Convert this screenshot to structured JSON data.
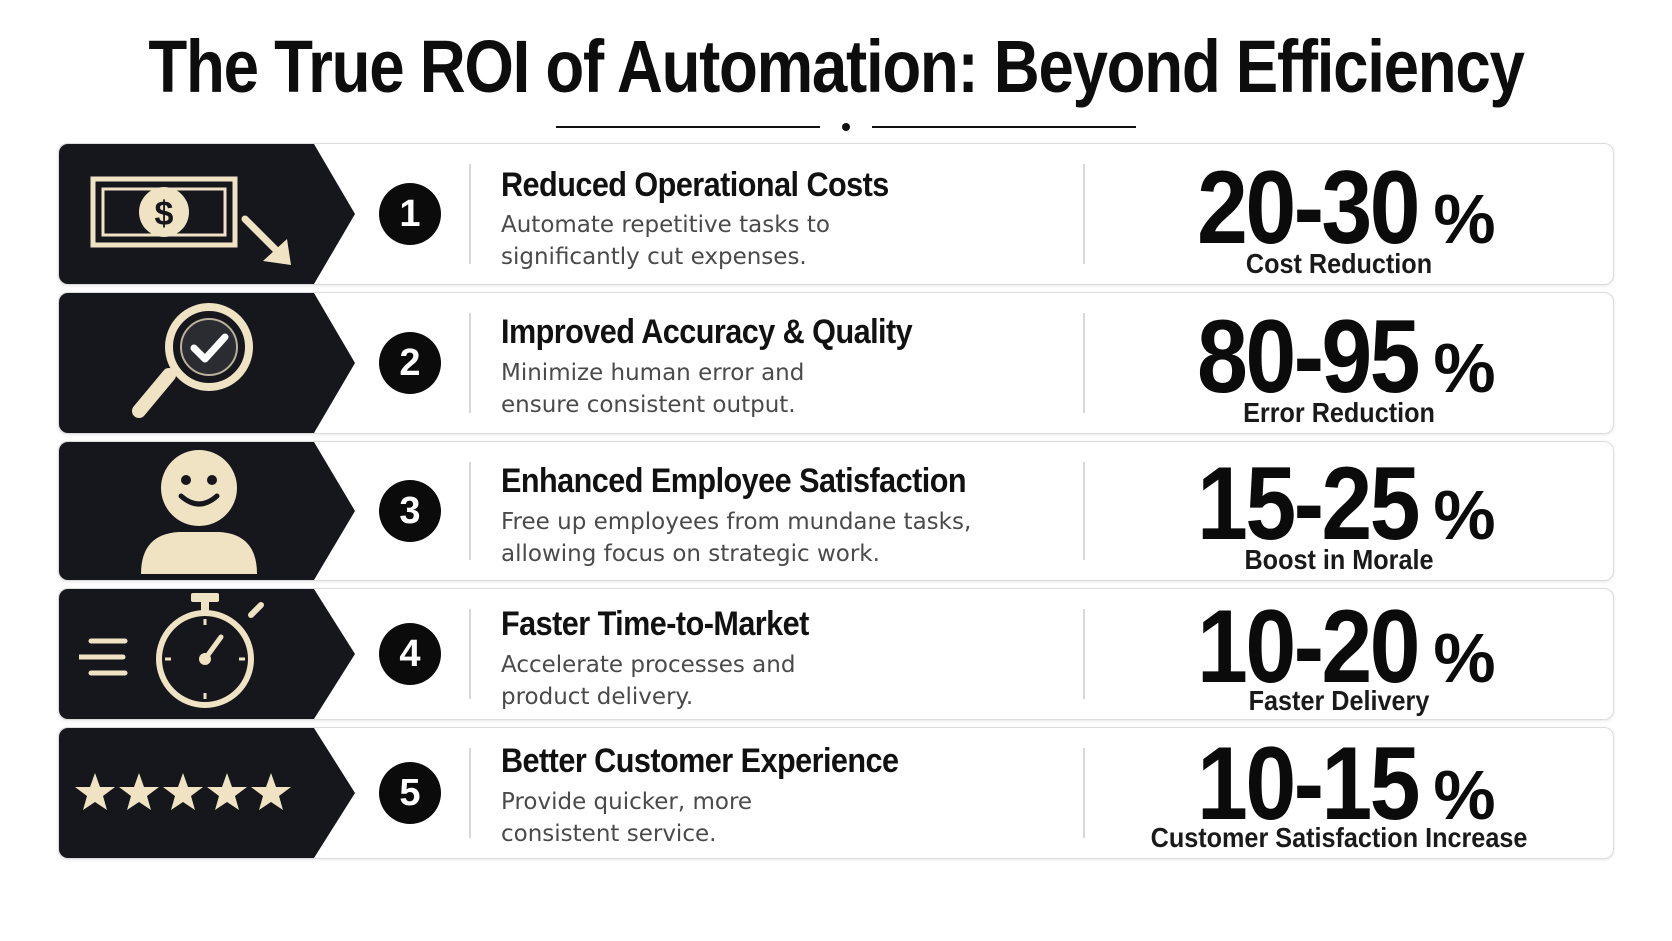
{
  "title": "The True ROI of Automation: Beyond Efficiency",
  "colors": {
    "icon_panel": "#15171c",
    "icon_fill": "#efe3c4",
    "number_badge": "#0b0b0b"
  },
  "rows": [
    {
      "number": "1",
      "icon": "money-down-icon",
      "heading": "Reduced Operational Costs",
      "desc_line1": "Automate repetitive tasks to",
      "desc_line2": "significantly cut expenses.",
      "stat_range": "20-30",
      "stat_unit": "%",
      "stat_label": "Cost Reduction"
    },
    {
      "number": "2",
      "icon": "magnifier-check-icon",
      "heading": "Improved Accuracy & Quality",
      "desc_line1": "Minimize human error and",
      "desc_line2": "ensure consistent output.",
      "stat_range": "80-95",
      "stat_unit": "%",
      "stat_label": "Error Reduction"
    },
    {
      "number": "3",
      "icon": "smiling-person-icon",
      "heading": "Enhanced Employee Satisfaction",
      "desc_line1": "Free up employees from mundane tasks,",
      "desc_line2": "allowing focus on strategic work.",
      "stat_range": "15-25",
      "stat_unit": "%",
      "stat_label": "Boost in Morale"
    },
    {
      "number": "4",
      "icon": "stopwatch-icon",
      "heading": "Faster Time-to-Market",
      "desc_line1": "Accelerate processes and",
      "desc_line2": "product delivery.",
      "stat_range": "10-20",
      "stat_unit": "%",
      "stat_label": "Faster Delivery"
    },
    {
      "number": "5",
      "icon": "five-stars-icon",
      "heading": "Better Customer Experience",
      "desc_line1": "Provide quicker, more",
      "desc_line2": "consistent service.",
      "stat_range": "10-15",
      "stat_unit": "%",
      "stat_label": "Customer Satisfaction Increase"
    }
  ]
}
